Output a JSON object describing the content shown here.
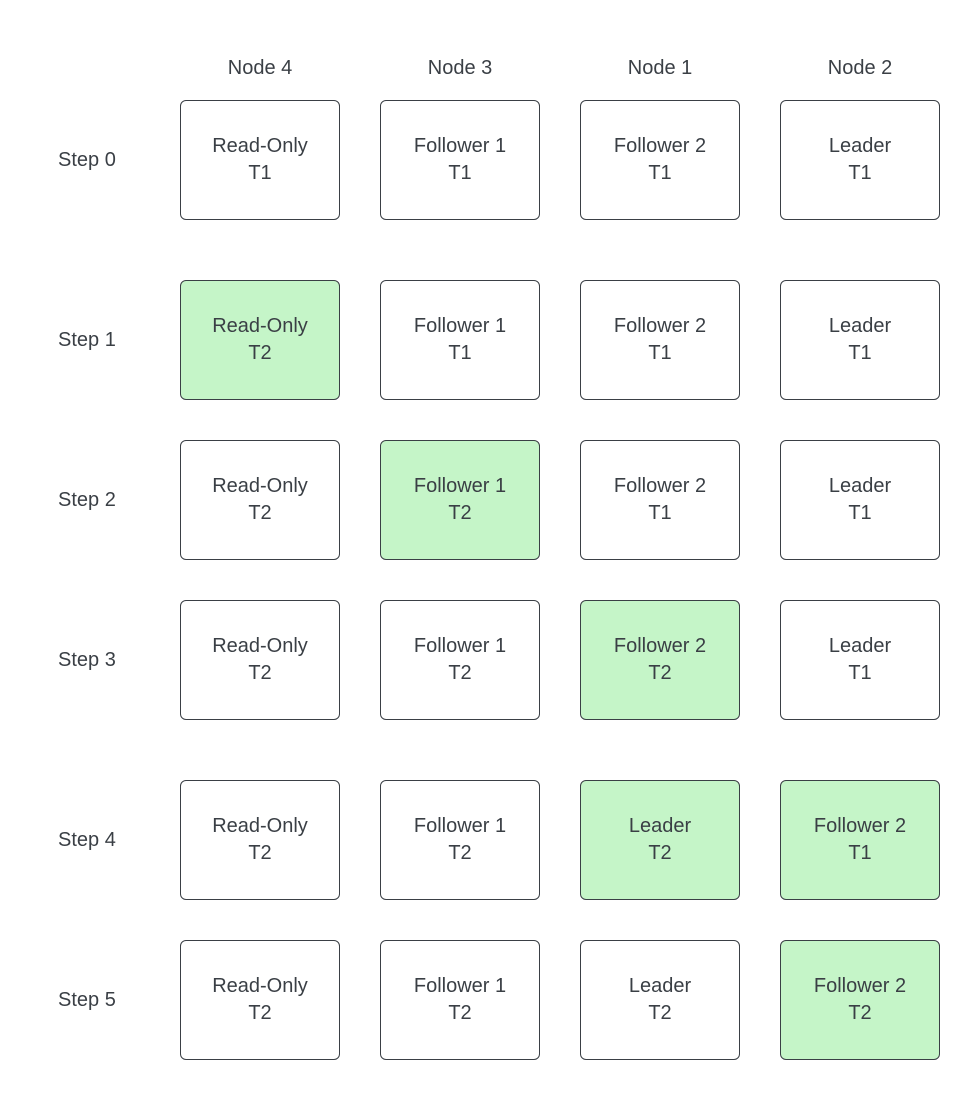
{
  "columns": [
    "Node 4",
    "Node 3",
    "Node 1",
    "Node 2"
  ],
  "highlight_color": "#c5f5c8",
  "steps": [
    {
      "label": "Step 0",
      "cells": [
        {
          "role": "Read-Only",
          "term": "T1",
          "changed": false
        },
        {
          "role": "Follower 1",
          "term": "T1",
          "changed": false
        },
        {
          "role": "Follower 2",
          "term": "T1",
          "changed": false
        },
        {
          "role": "Leader",
          "term": "T1",
          "changed": false
        }
      ]
    },
    {
      "label": "Step 1",
      "cells": [
        {
          "role": "Read-Only",
          "term": "T2",
          "changed": true
        },
        {
          "role": "Follower 1",
          "term": "T1",
          "changed": false
        },
        {
          "role": "Follower 2",
          "term": "T1",
          "changed": false
        },
        {
          "role": "Leader",
          "term": "T1",
          "changed": false
        }
      ]
    },
    {
      "label": "Step 2",
      "cells": [
        {
          "role": "Read-Only",
          "term": "T2",
          "changed": false
        },
        {
          "role": "Follower 1",
          "term": "T2",
          "changed": true
        },
        {
          "role": "Follower 2",
          "term": "T1",
          "changed": false
        },
        {
          "role": "Leader",
          "term": "T1",
          "changed": false
        }
      ]
    },
    {
      "label": "Step 3",
      "cells": [
        {
          "role": "Read-Only",
          "term": "T2",
          "changed": false
        },
        {
          "role": "Follower 1",
          "term": "T2",
          "changed": false
        },
        {
          "role": "Follower 2",
          "term": "T2",
          "changed": true
        },
        {
          "role": "Leader",
          "term": "T1",
          "changed": false
        }
      ]
    },
    {
      "label": "Step 4",
      "cells": [
        {
          "role": "Read-Only",
          "term": "T2",
          "changed": false
        },
        {
          "role": "Follower 1",
          "term": "T2",
          "changed": false
        },
        {
          "role": "Leader",
          "term": "T2",
          "changed": true
        },
        {
          "role": "Follower 2",
          "term": "T1",
          "changed": true
        }
      ]
    },
    {
      "label": "Step 5",
      "cells": [
        {
          "role": "Read-Only",
          "term": "T2",
          "changed": false
        },
        {
          "role": "Follower 1",
          "term": "T2",
          "changed": false
        },
        {
          "role": "Leader",
          "term": "T2",
          "changed": false
        },
        {
          "role": "Follower 2",
          "term": "T2",
          "changed": true
        }
      ]
    }
  ]
}
